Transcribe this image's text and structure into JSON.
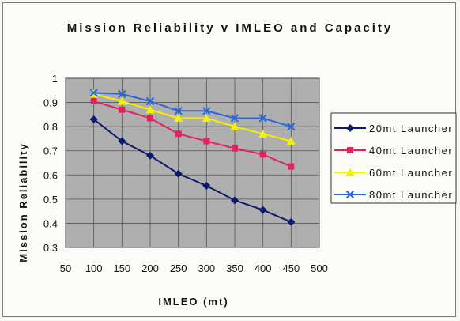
{
  "chart_data": {
    "type": "line",
    "title": "Mission Reliability v IMLEO and Capacity",
    "xlabel": "IMLEO (mt)",
    "ylabel": "Mission Reliability",
    "xlim": [
      50,
      500
    ],
    "ylim": [
      0.3,
      1.0
    ],
    "xticks": [
      "50",
      "100",
      "150",
      "200",
      "250",
      "300",
      "350",
      "400",
      "450",
      "500"
    ],
    "yticks": [
      "0.3",
      "0.4",
      "0.5",
      "0.6",
      "0.7",
      "0.8",
      "0.9",
      "1"
    ],
    "grid": true,
    "legend_position": "right",
    "x": [
      100,
      150,
      200,
      250,
      300,
      350,
      400,
      450
    ],
    "series": [
      {
        "name": "20mt Launcher",
        "color": "#0a1a6e",
        "marker": "diamond",
        "values": [
          0.83,
          0.74,
          0.68,
          0.605,
          0.555,
          0.495,
          0.455,
          0.405
        ]
      },
      {
        "name": "40mt Launcher",
        "color": "#e0245e",
        "marker": "square",
        "values": [
          0.905,
          0.87,
          0.835,
          0.77,
          0.74,
          0.71,
          0.685,
          0.635
        ]
      },
      {
        "name": "60mt Launcher",
        "color": "#f4f000",
        "marker": "triangle",
        "values": [
          0.935,
          0.905,
          0.87,
          0.835,
          0.835,
          0.8,
          0.77,
          0.74
        ]
      },
      {
        "name": "80mt Launcher",
        "color": "#2a68d8",
        "marker": "x",
        "values": [
          0.94,
          0.935,
          0.905,
          0.865,
          0.865,
          0.835,
          0.835,
          0.8
        ]
      }
    ]
  }
}
